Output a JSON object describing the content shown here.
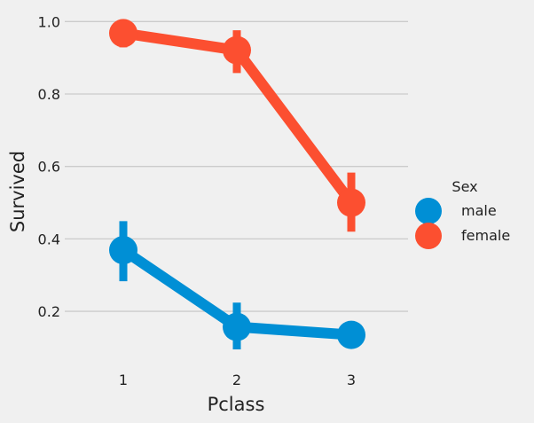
{
  "chart_data": {
    "type": "line",
    "xlabel": "Pclass",
    "ylabel": "Survived",
    "categories": [
      "1",
      "2",
      "3"
    ],
    "ylim": [
      0.09,
      1.04
    ],
    "yticks": [
      0.2,
      0.4,
      0.6,
      0.8,
      1.0
    ],
    "ytick_labels": [
      "0.2",
      "0.4",
      "0.6",
      "0.8",
      "1.0"
    ],
    "grid": "horizontal",
    "legend": {
      "title": "Sex",
      "placement": "right",
      "entries": [
        "male",
        "female"
      ]
    },
    "series": [
      {
        "name": "male",
        "color": "#008fd5",
        "values": [
          0.369,
          0.157,
          0.135
        ],
        "ci_low": [
          0.283,
          0.095,
          null
        ],
        "ci_high": [
          0.449,
          0.224,
          null
        ]
      },
      {
        "name": "female",
        "color": "#fc4f30",
        "values": [
          0.968,
          0.921,
          0.5
        ],
        "ci_low": [
          0.929,
          0.858,
          0.42
        ],
        "ci_high": [
          1.0,
          0.976,
          0.583
        ]
      }
    ]
  }
}
